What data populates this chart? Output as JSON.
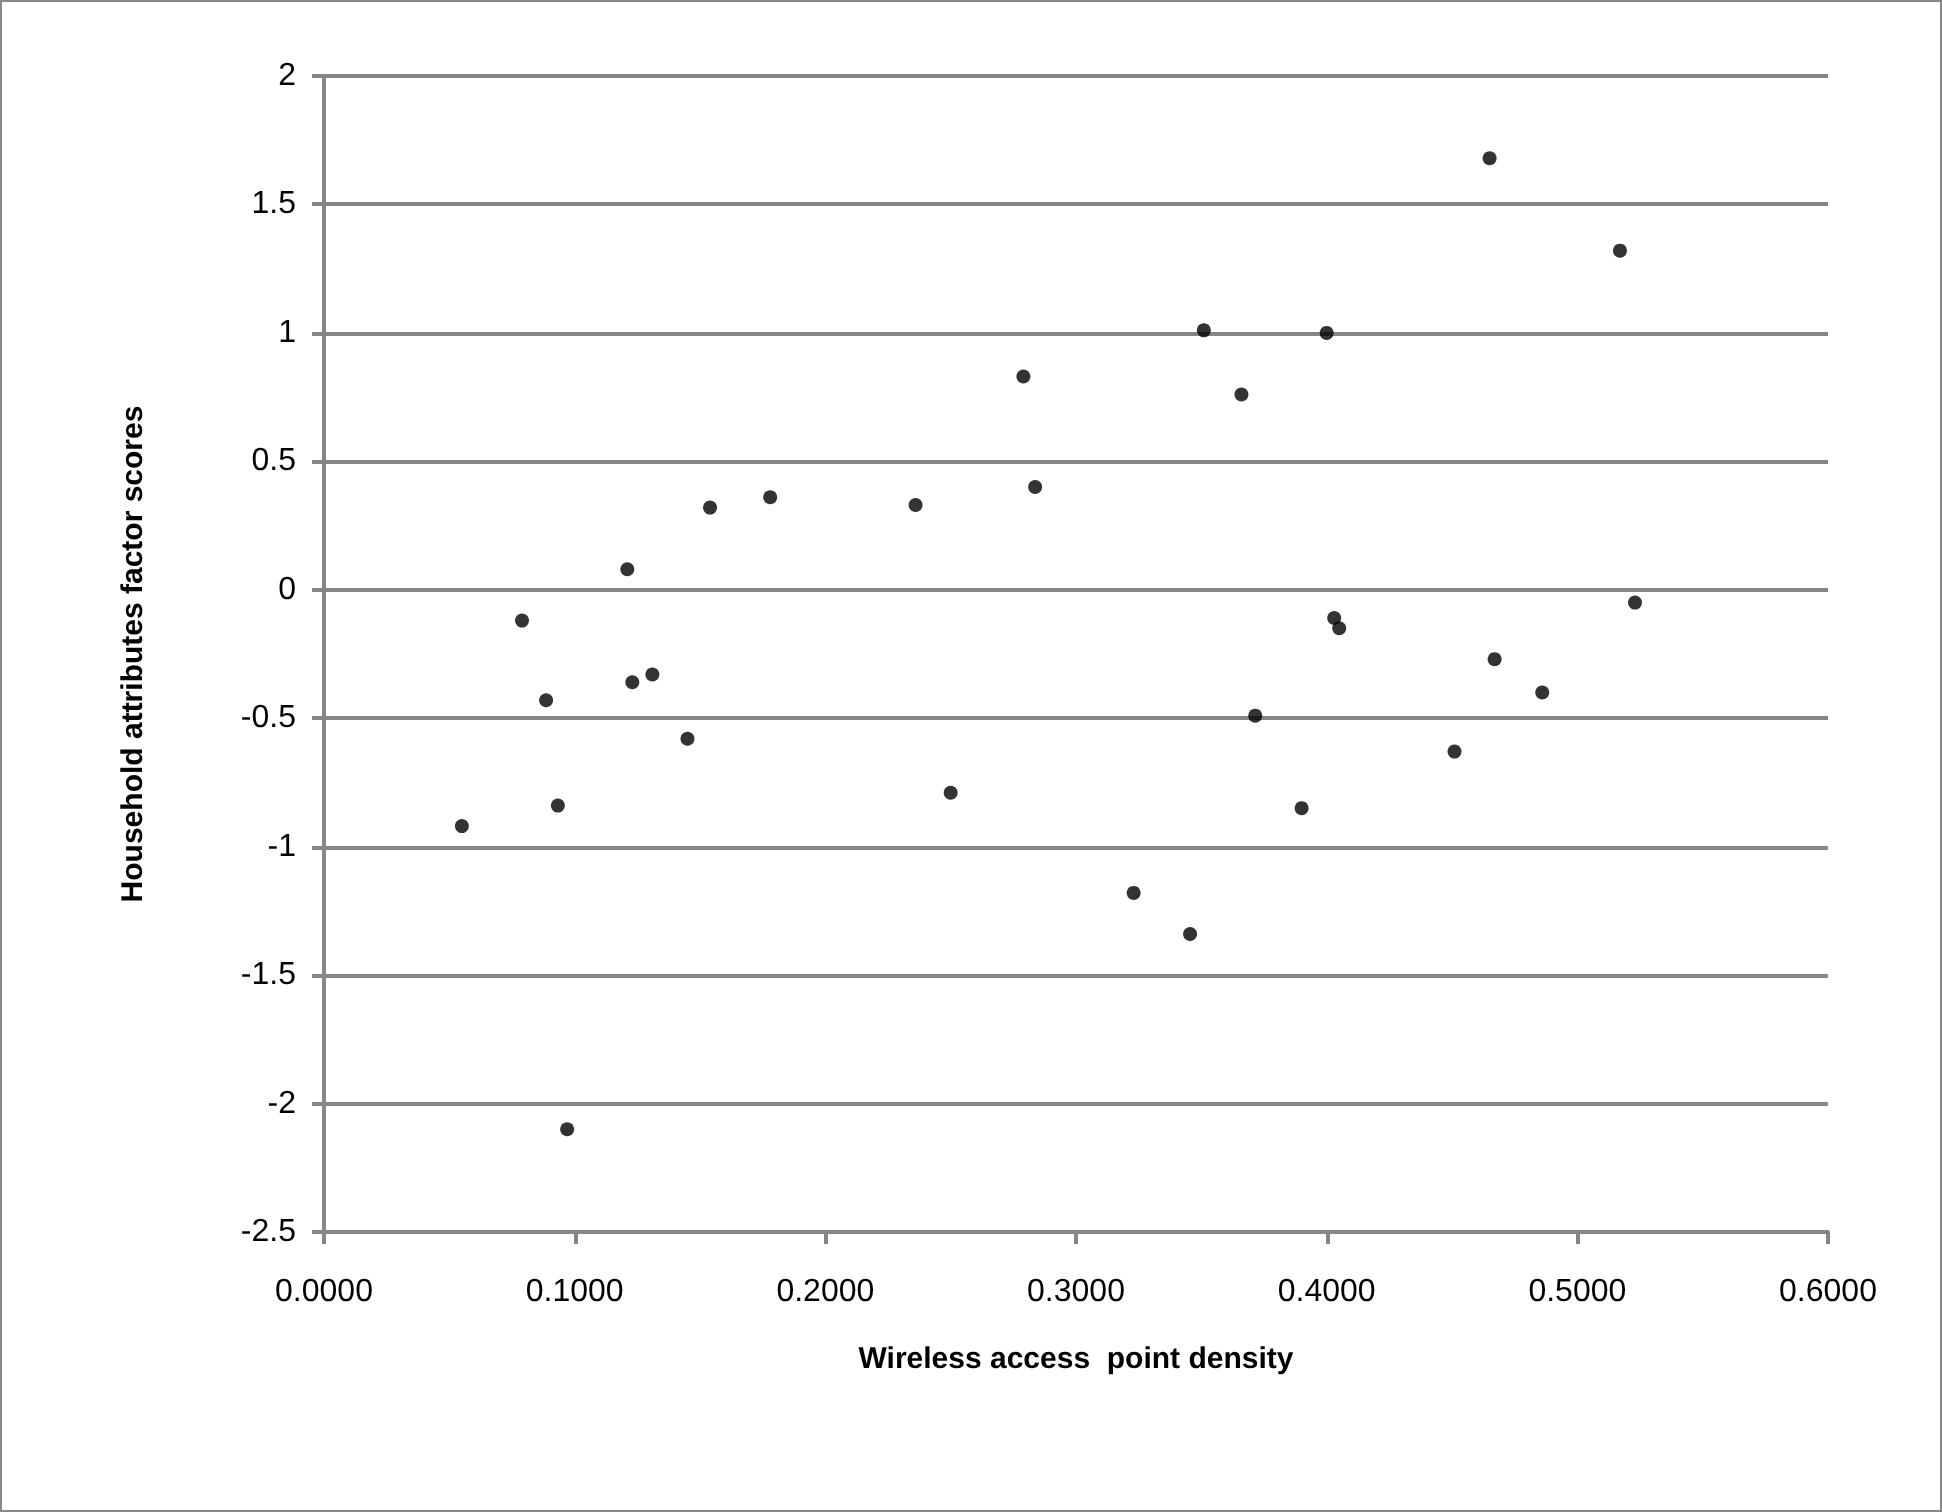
{
  "chart_data": {
    "type": "scatter",
    "xlabel": "Wireless access  point density",
    "ylabel": "Household attributes factor scores",
    "x": [
      0.055,
      0.079,
      0.0886,
      0.0933,
      0.097,
      0.121,
      0.123,
      0.131,
      0.145,
      0.154,
      0.178,
      0.236,
      0.25,
      0.279,
      0.2837,
      0.323,
      0.3455,
      0.351,
      0.366,
      0.3715,
      0.39,
      0.4,
      0.403,
      0.405,
      0.451,
      0.465,
      0.467,
      0.486,
      0.517,
      0.523
    ],
    "series": [
      {
        "color": "#000000",
        "values": [
          -0.92,
          -0.12,
          -0.43,
          -0.84,
          -2.1,
          0.08,
          -0.36,
          -0.33,
          -0.58,
          0.32,
          0.36,
          0.33,
          -0.79,
          0.83,
          0.4,
          -1.18,
          -1.34,
          1.01,
          0.76,
          -0.49,
          -0.85,
          1.0,
          -0.11,
          -0.15,
          -0.63,
          1.68,
          -0.27,
          -0.4,
          1.32,
          -0.05
        ]
      }
    ],
    "xlim": [
      0,
      0.6
    ],
    "xticks": [
      {
        "value": 0,
        "label": "0.0000"
      },
      {
        "value": 0.1,
        "label": "0.1000"
      },
      {
        "value": 0.2,
        "label": "0.2000"
      },
      {
        "value": 0.3,
        "label": "0.3000"
      },
      {
        "value": 0.4,
        "label": "0.4000"
      },
      {
        "value": 0.5,
        "label": "0.5000"
      },
      {
        "value": 0.6,
        "label": "0.6000"
      }
    ],
    "ylim": [
      -2.5,
      2
    ],
    "yticks": [
      -2.5,
      -2,
      -1.5,
      -1,
      -0.5,
      0,
      0.5,
      1,
      1.5,
      2
    ],
    "grid": "y",
    "marker": "circle"
  }
}
